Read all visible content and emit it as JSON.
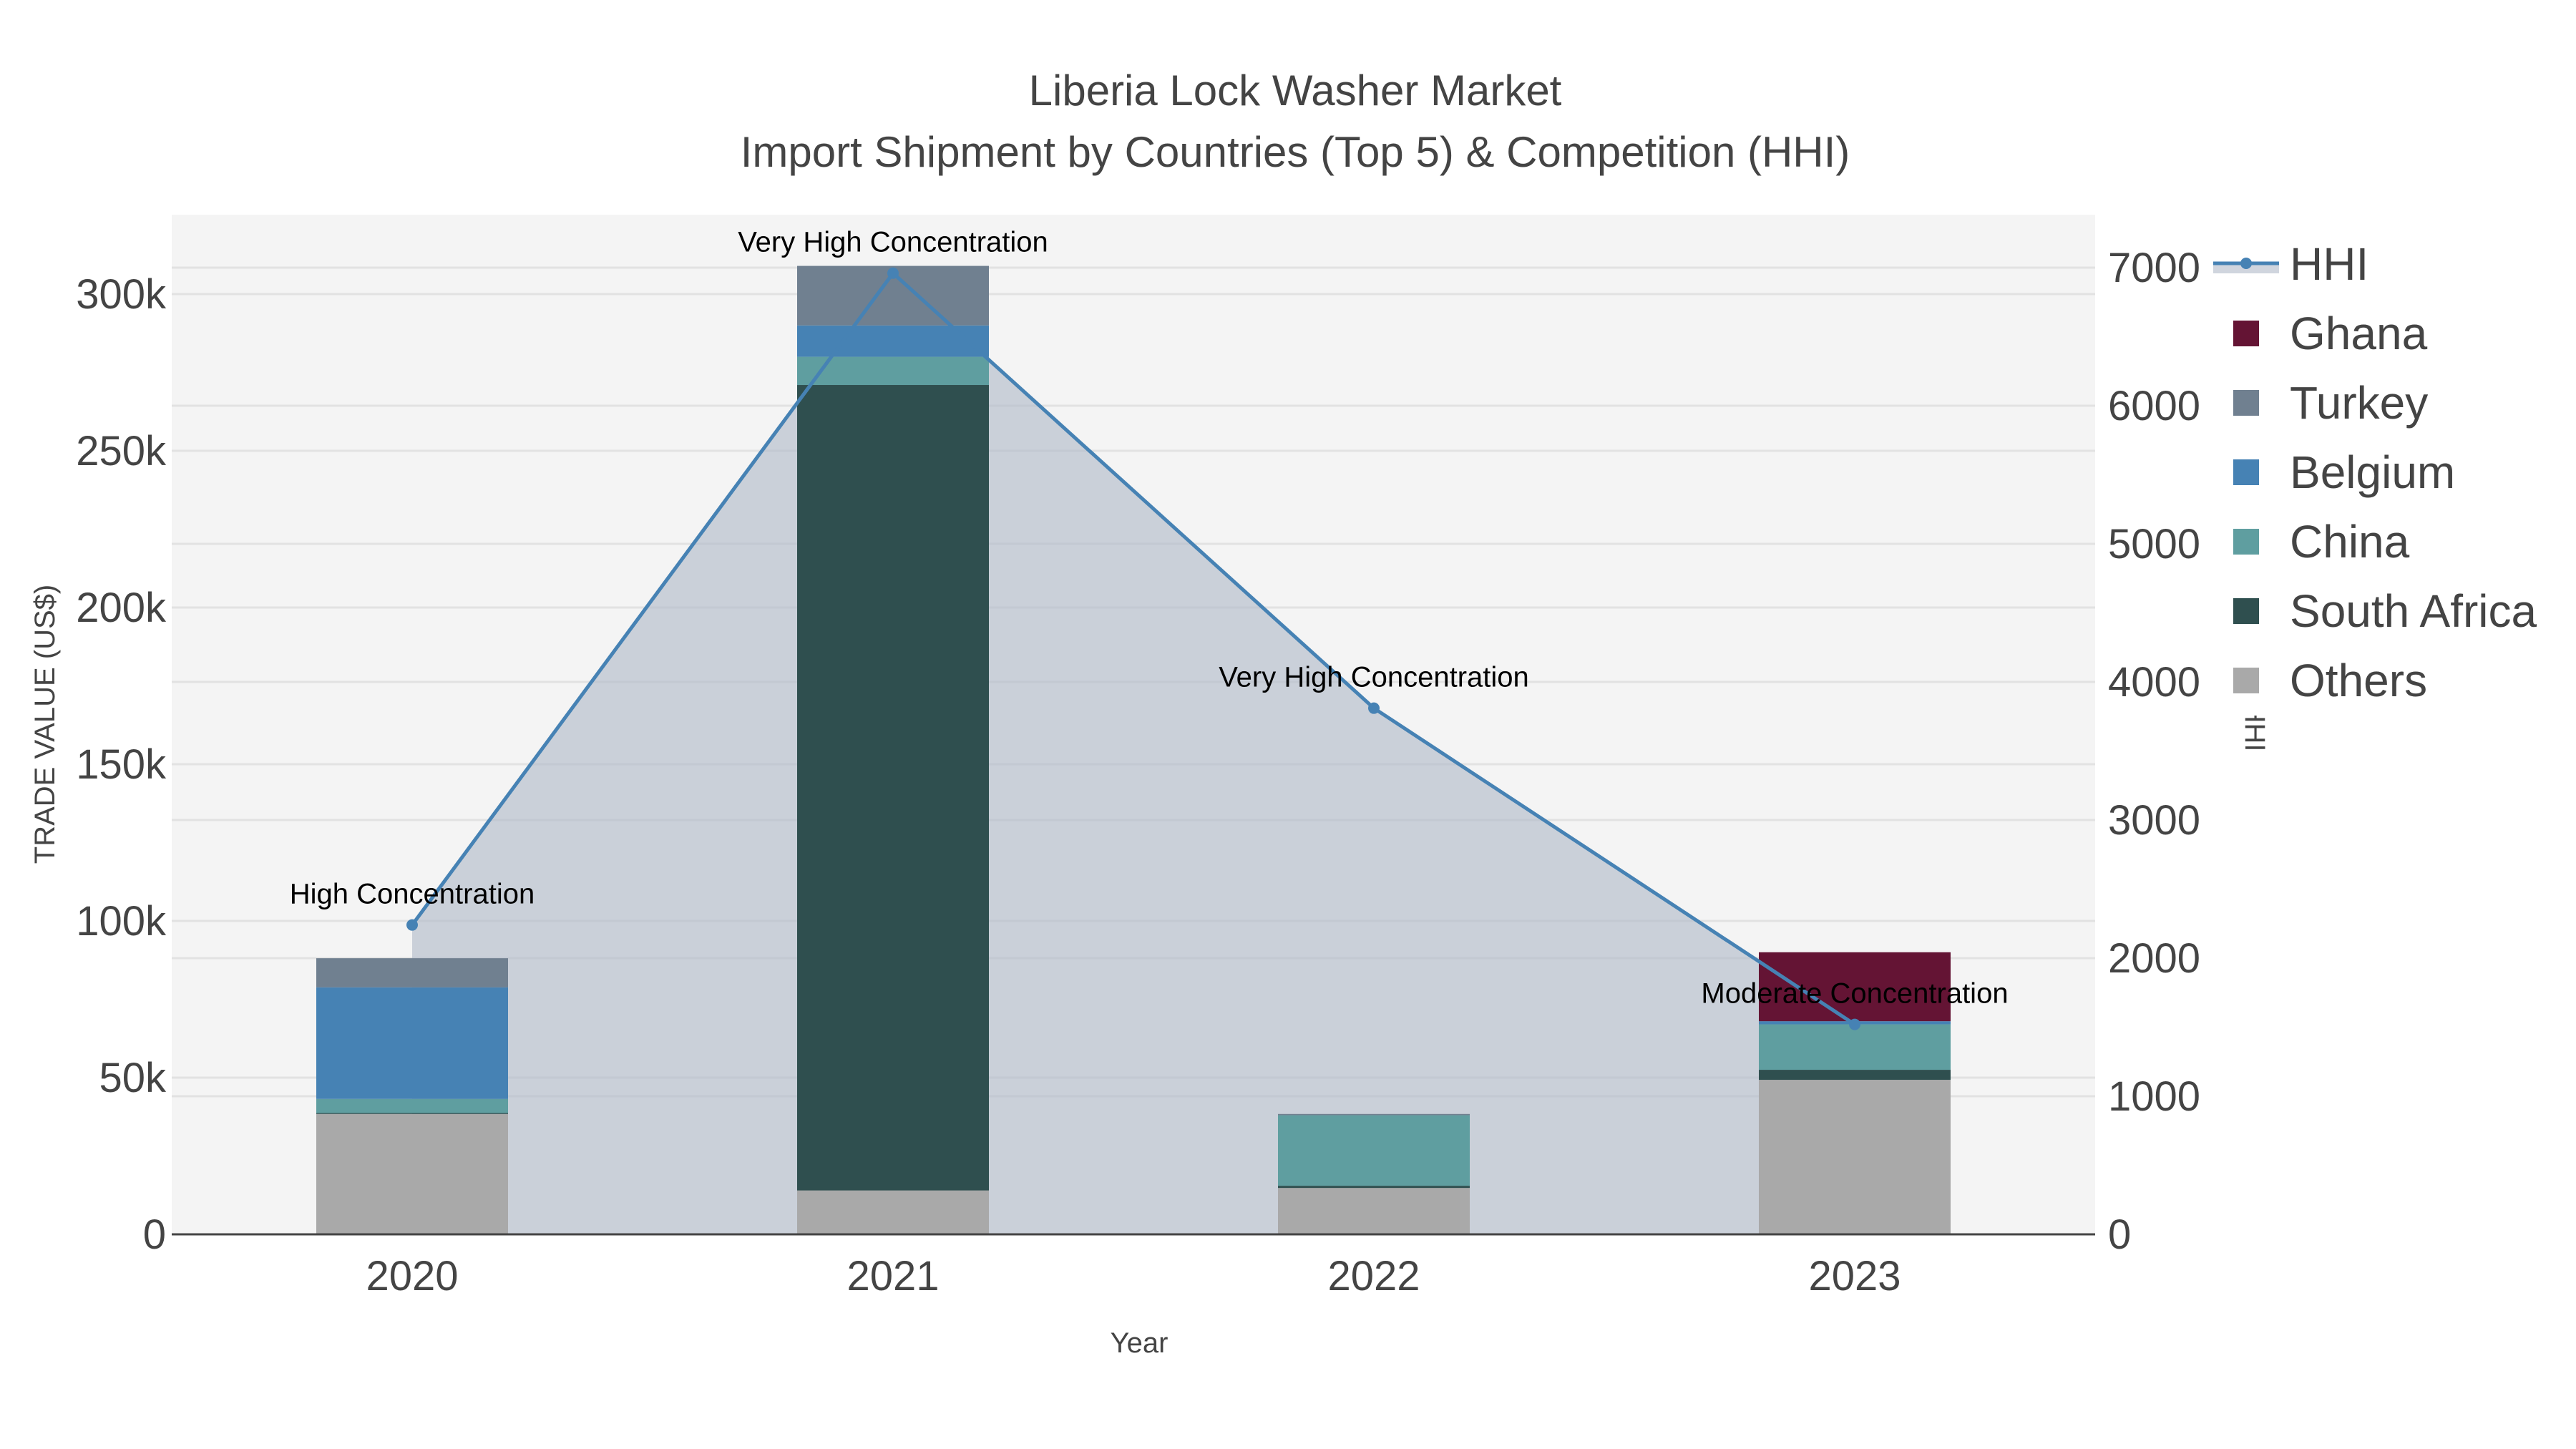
{
  "title": {
    "line1": "Liberia Lock Washer Market",
    "line2": "Import Shipment by Countries (Top 5) & Competition (HHI)"
  },
  "axes": {
    "x_title": "Year",
    "y_left_title": "TRADE VALUE (US$)",
    "y_right_title": "HHI",
    "y_left_ticks": [
      "0",
      "50k",
      "100k",
      "150k",
      "200k",
      "250k",
      "300k"
    ],
    "y_right_ticks": [
      "0",
      "1000",
      "2000",
      "3000",
      "4000",
      "5000",
      "6000",
      "7000"
    ],
    "x_ticks": [
      "2020",
      "2021",
      "2022",
      "2023"
    ]
  },
  "legend": [
    {
      "name": "HHI",
      "type": "line",
      "color": "#4682B4"
    },
    {
      "name": "Ghana",
      "type": "bar",
      "color": "#641434"
    },
    {
      "name": "Turkey",
      "type": "bar",
      "color": "#708090"
    },
    {
      "name": "Belgium",
      "type": "bar",
      "color": "#4682B4"
    },
    {
      "name": "China",
      "type": "bar",
      "color": "#5F9EA0"
    },
    {
      "name": "South Africa",
      "type": "bar",
      "color": "#2F4F4F"
    },
    {
      "name": "Others",
      "type": "bar",
      "color": "#A9A9A9"
    }
  ],
  "annotations": [
    {
      "year": "2020",
      "text": "High Concentration"
    },
    {
      "year": "2021",
      "text": "Very High Concentration"
    },
    {
      "year": "2022",
      "text": "Very High Concentration"
    },
    {
      "year": "2023",
      "text": "Moderate Concentration"
    }
  ],
  "colors": {
    "plot_bg": "#F4F4F4",
    "grid": "#E2E2E2",
    "hhi_line": "#4682B4",
    "hhi_fill": "rgba(176,185,200,0.62)",
    "axis_line": "#444444"
  },
  "chart_data": {
    "type": "bar",
    "subtype": "stacked bar + line (secondary axis)",
    "title": "Liberia Lock Washer Market - Import Shipment by Countries (Top 5) & Competition (HHI)",
    "xlabel": "Year",
    "ylabel": "TRADE VALUE (US$)",
    "y2label": "HHI",
    "categories": [
      "2020",
      "2021",
      "2022",
      "2023"
    ],
    "ylim": [
      0,
      325000
    ],
    "y2lim": [
      0,
      7400
    ],
    "grid": true,
    "legend_position": "right",
    "stack_order_bottom_to_top": [
      "Others",
      "South Africa",
      "China",
      "Belgium",
      "Turkey",
      "Ghana"
    ],
    "series": [
      {
        "name": "Others",
        "type": "bar",
        "values": [
          38400,
          14000,
          14800,
          49300
        ]
      },
      {
        "name": "South Africa",
        "type": "bar",
        "values": [
          300,
          257000,
          700,
          3200
        ]
      },
      {
        "name": "China",
        "type": "bar",
        "values": [
          4500,
          9000,
          22500,
          14500
        ]
      },
      {
        "name": "Belgium",
        "type": "bar",
        "values": [
          35600,
          10000,
          0,
          1000
        ]
      },
      {
        "name": "Turkey",
        "type": "bar",
        "values": [
          9300,
          19000,
          400,
          0
        ]
      },
      {
        "name": "Ghana",
        "type": "bar",
        "values": [
          0,
          0,
          0,
          22000
        ]
      },
      {
        "name": "HHI",
        "type": "line",
        "axis": "y2",
        "values": [
          2240,
          6960,
          3810,
          1520
        ]
      }
    ],
    "annotations": [
      "High Concentration",
      "Very High Concentration",
      "Very High Concentration",
      "Moderate Concentration"
    ]
  }
}
